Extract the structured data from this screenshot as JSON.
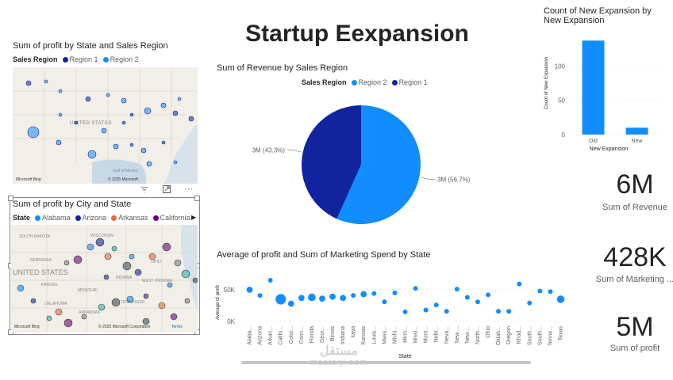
{
  "page": {
    "title": "Startup Eexpansion"
  },
  "map1": {
    "title": "Sum of profit by State and Sales Region",
    "legend_title": "Sales Region",
    "legend": [
      {
        "label": "Region 1",
        "color": "#12239e"
      },
      {
        "label": "Region 2",
        "color": "#118dff"
      }
    ],
    "labels": [
      "UNITED STATES",
      "Gulf of Mexico"
    ],
    "attribution": "Microsoft Bing",
    "copyright": "© 2025 Microsoft",
    "icons": [
      "filter-icon",
      "focus-mode-icon",
      "more-options-icon"
    ]
  },
  "map2": {
    "title": "Sum of profit by City and State",
    "legend_title": "State",
    "legend": [
      {
        "label": "Alabama",
        "color": "#118dff"
      },
      {
        "label": "Arizona",
        "color": "#12239e"
      },
      {
        "label": "Arkansas",
        "color": "#e66c37"
      },
      {
        "label": "California",
        "color": "#6b007b"
      }
    ],
    "labels": [
      "UNITED STATES",
      "SOUTH DAKOTA",
      "WISCONSIN",
      "NEBRASKA",
      "KANSAS",
      "MISSOURI",
      "INDIANA",
      "OHIO",
      "WEST VIRGINIA",
      "OKLAHOMA",
      "ARKANSAS",
      "TENNESSEE"
    ],
    "attribution": "Microsoft Bing",
    "copyright": "© 2025 Microsoft Corporation",
    "terms": "Terms"
  },
  "chart_data": [
    {
      "type": "pie",
      "title": "Sum of Revenue by Sales Region",
      "legend_title": "Sales Region",
      "categories": [
        "Region 2",
        "Region 1"
      ],
      "values": [
        56.7,
        43.3
      ],
      "data_labels": [
        "3M (56.7%)",
        "3M (43.3%)"
      ],
      "colors": [
        "#118dff",
        "#12239e"
      ],
      "legend_position": "top"
    },
    {
      "type": "bar",
      "title": "Count of New Expansion by New Expansion",
      "categories": [
        "Old",
        "New"
      ],
      "values": [
        137,
        10
      ],
      "xlabel": "New Expansion",
      "ylabel": "Count of New Expansion",
      "yticks": [
        0,
        50,
        100
      ],
      "ylim": [
        0,
        150
      ],
      "color": "#118dff",
      "grid": true
    },
    {
      "type": "scatter",
      "title": "Average of profit and Sum of Marketing Spend by State",
      "xlabel": "State",
      "ylabel": "Average of profit",
      "yticks": [
        "0K",
        "50K"
      ],
      "ylim": [
        0,
        75000
      ],
      "color": "#118dff",
      "categories": [
        "Alaba...",
        "Arizona",
        "Arkan...",
        "Califo...",
        "Color...",
        "Conn...",
        "Florida",
        "Geor...",
        "Illinois",
        "Indiana",
        "Iowa",
        "Kansas",
        "Louis...",
        "Mass...",
        "Michi...",
        "Minn...",
        "Missi...",
        "Mont...",
        "Nebr...",
        "Neva...",
        "New ...",
        "New ...",
        "North...",
        "Ohio",
        "Oklah...",
        "Oregon",
        "Rhod...",
        "South...",
        "South...",
        "Tenne...",
        "Texas"
      ],
      "values": [
        50000,
        41000,
        65000,
        35000,
        28000,
        37000,
        38000,
        36000,
        39000,
        37000,
        41000,
        43000,
        44000,
        31000,
        45000,
        15000,
        52000,
        18000,
        26000,
        16000,
        51000,
        38000,
        31000,
        42000,
        16000,
        16000,
        59000,
        29000,
        48000,
        47000,
        35000
      ],
      "sizes": [
        3,
        2,
        2,
        6,
        3,
        3,
        4,
        3,
        3,
        3,
        2,
        3,
        2,
        2,
        2,
        2,
        2,
        2,
        2,
        2,
        2,
        2,
        2,
        2,
        2,
        2,
        2,
        2,
        2,
        2,
        4
      ]
    }
  ],
  "kpis": [
    {
      "value": "6M",
      "label": "Sum of Revenue"
    },
    {
      "value": "428K",
      "label": "Sum of Marketing ..."
    },
    {
      "value": "5M",
      "label": "Sum of profit"
    }
  ],
  "watermark": {
    "arabic": "مستقل",
    "latin": "mostaql.com"
  }
}
